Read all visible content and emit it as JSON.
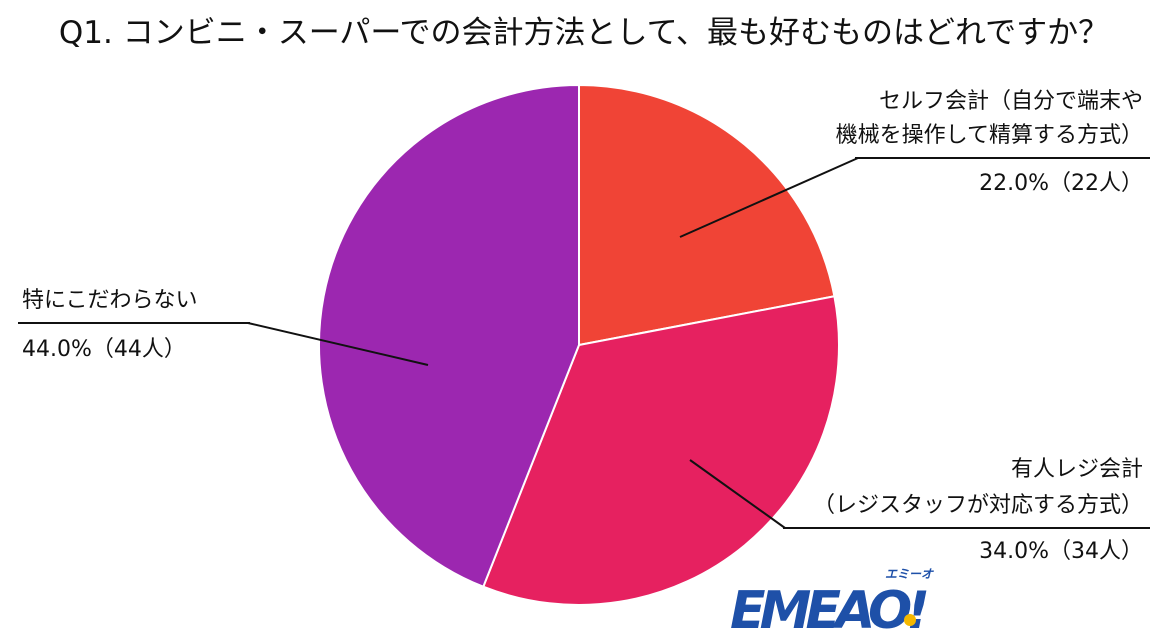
{
  "chart_data": {
    "type": "pie",
    "title": "Q1. コンビニ・スーパーでの会計方法として、最も好むものはどれですか？",
    "start_angle_deg": 0,
    "direction": "clockwise",
    "slices": [
      {
        "label_lines": [
          "セルフ会計（自分で端末や",
          "機械を操作して精算する方式）"
        ],
        "value_text": "22.0%（22人）",
        "percent": 22.0,
        "count": 22,
        "color": "#f04436"
      },
      {
        "label_lines": [
          "有人レジ会計",
          "（レジスタッフが対応する方式）"
        ],
        "value_text": "34.0%（34人）",
        "percent": 34.0,
        "count": 34,
        "color": "#e62160"
      },
      {
        "label_lines": [
          "特にこだわらない"
        ],
        "value_text": "44.0%（44人）",
        "percent": 44.0,
        "count": 44,
        "color": "#9c27b0"
      }
    ]
  },
  "logo": {
    "text": "EMEAO!",
    "ruby": "エミーオ",
    "color": "#1e50a8",
    "accent_color": "#f5b800"
  }
}
